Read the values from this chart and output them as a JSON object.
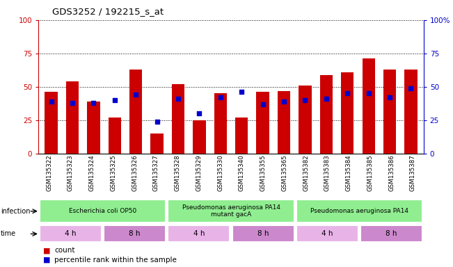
{
  "title": "GDS3252 / 192215_s_at",
  "samples": [
    "GSM135322",
    "GSM135323",
    "GSM135324",
    "GSM135325",
    "GSM135326",
    "GSM135327",
    "GSM135328",
    "GSM135329",
    "GSM135330",
    "GSM135340",
    "GSM135355",
    "GSM135365",
    "GSM135382",
    "GSM135383",
    "GSM135384",
    "GSM135385",
    "GSM135386",
    "GSM135387"
  ],
  "counts": [
    46,
    54,
    39,
    27,
    63,
    15,
    52,
    25,
    45,
    27,
    46,
    47,
    51,
    59,
    61,
    71,
    63,
    63
  ],
  "percentiles": [
    39,
    38,
    38,
    40,
    44,
    24,
    41,
    30,
    42,
    46,
    37,
    39,
    40,
    41,
    45,
    45,
    42,
    49
  ],
  "infection_groups": [
    {
      "label": "Escherichia coli OP50",
      "start": 0,
      "end": 6,
      "color": "#90ee90"
    },
    {
      "label": "Pseudomonas aeruginosa PA14\nmutant gacA",
      "start": 6,
      "end": 12,
      "color": "#90ee90"
    },
    {
      "label": "Pseudomonas aeruginosa PA14",
      "start": 12,
      "end": 18,
      "color": "#90ee90"
    }
  ],
  "time_groups": [
    {
      "label": "4 h",
      "start": 0,
      "end": 3
    },
    {
      "label": "8 h",
      "start": 3,
      "end": 6
    },
    {
      "label": "4 h",
      "start": 6,
      "end": 9
    },
    {
      "label": "8 h",
      "start": 9,
      "end": 12
    },
    {
      "label": "4 h",
      "start": 12,
      "end": 15
    },
    {
      "label": "8 h",
      "start": 15,
      "end": 18
    }
  ],
  "time_colors": [
    "#e8b4e8",
    "#cc88cc",
    "#e8b4e8",
    "#cc88cc",
    "#e8b4e8",
    "#cc88cc"
  ],
  "bar_color": "#cc0000",
  "dot_color": "#0000cc",
  "left_tick_color": "#cc0000",
  "right_tick_color": "#0000cc",
  "xtick_bg": "#c8c8c8",
  "infection_color": "#90ee90",
  "plot_bg": "#ffffff"
}
